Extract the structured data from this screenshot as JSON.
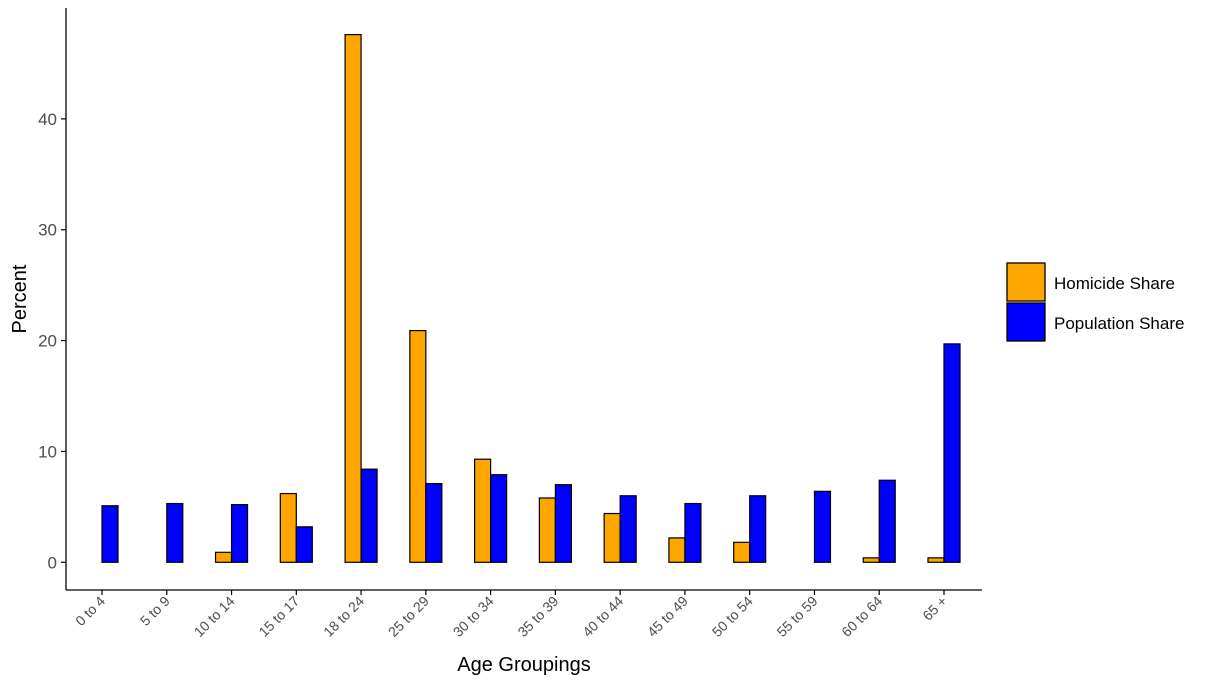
{
  "chart_data": {
    "type": "bar",
    "title": "",
    "xlabel": "Age Groupings",
    "ylabel": "Percent",
    "ylim": [
      -2.5,
      50
    ],
    "yticks": [
      0,
      10,
      20,
      30,
      40
    ],
    "grid": false,
    "legend_position": "right",
    "categories": [
      "0 to 4",
      "5 to 9",
      "10 to 14",
      "15 to 17",
      "18 to 24",
      "25 to 29",
      "30 to 34",
      "35 to 39",
      "40 to 44",
      "45 to 49",
      "50 to 54",
      "55 to 59",
      "60 to 64",
      "65 +"
    ],
    "series": [
      {
        "name": "Homicide Share",
        "color": "#FFA500",
        "values": [
          0,
          0,
          0.9,
          6.2,
          47.6,
          20.9,
          9.3,
          5.8,
          4.4,
          2.2,
          1.8,
          0,
          0.4,
          0.4
        ]
      },
      {
        "name": "Population Share",
        "color": "#0000FF",
        "values": [
          5.1,
          5.3,
          5.2,
          3.2,
          8.4,
          7.1,
          7.9,
          7.0,
          6.0,
          5.3,
          6.0,
          6.4,
          7.4,
          19.7
        ]
      }
    ]
  }
}
